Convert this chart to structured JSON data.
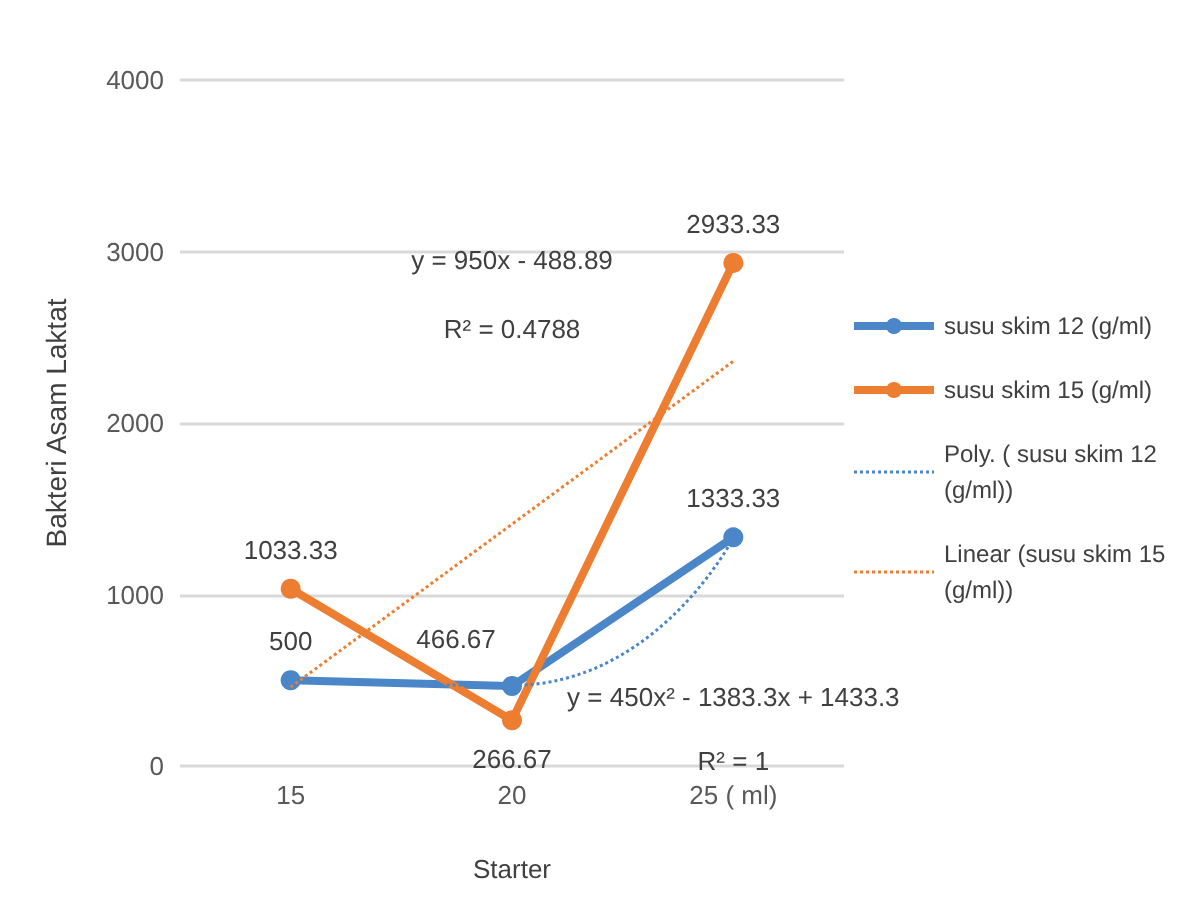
{
  "chart_data": {
    "type": "line",
    "xlabel": "Starter",
    "ylabel": "Bakteri Asam Laktat",
    "categories": [
      "15",
      "20",
      "25 ( ml)"
    ],
    "series": [
      {
        "name": "susu skim 12 (g/ml)",
        "color": "#4a86c8",
        "values": [
          500,
          466.67,
          1333.33
        ],
        "value_labels": [
          "500",
          "466.67",
          "1333.33"
        ],
        "marker": "circle",
        "line_style": "solid"
      },
      {
        "name": "susu skim 15 (g/ml)",
        "color": "#ed7d31",
        "values": [
          1033.33,
          266.67,
          2933.33
        ],
        "value_labels": [
          "1033.33",
          "266.67",
          "2933.33"
        ],
        "marker": "circle",
        "line_style": "solid"
      },
      {
        "name": "Poly. ( susu skim 12  (g/ml))",
        "color": "#4a86c8",
        "values": [
          500,
          470,
          1330
        ],
        "marker": "none",
        "line_style": "dotted"
      },
      {
        "name": "Linear (susu skim 15 (g/ml))",
        "color": "#ed7d31",
        "values": [
          460,
          1410,
          2360
        ],
        "marker": "none",
        "line_style": "dotted"
      }
    ],
    "annotations": [
      "y = 950x - 488.89",
      "R² = 0.4788",
      "y = 450x² - 1383.3x + 1433.3",
      "R² = 1"
    ],
    "ylim": [
      0,
      4000
    ],
    "yticks": [
      0,
      1000,
      2000,
      3000,
      4000
    ],
    "grid": "y",
    "legend": "right"
  }
}
